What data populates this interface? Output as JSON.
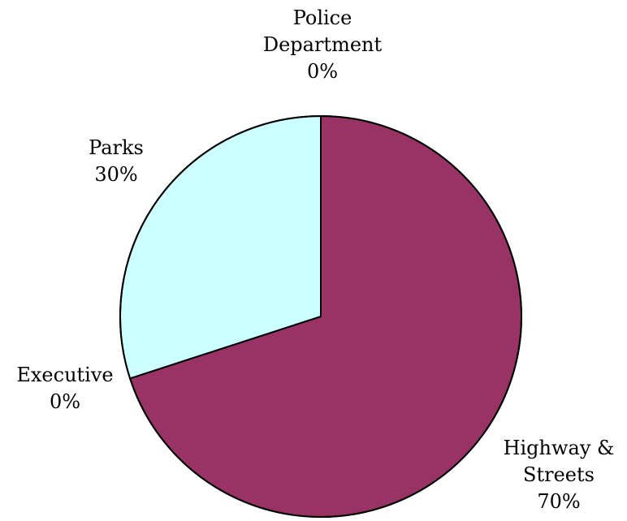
{
  "chart_data": {
    "type": "pie",
    "title": "",
    "start_angle_deg": 0,
    "direction": "clockwise",
    "slices": [
      {
        "label_lines": [
          "Highway &",
          "Streets"
        ],
        "pct_label": "70%",
        "value": 70,
        "color": "#993366"
      },
      {
        "label_lines": [
          "Executive"
        ],
        "pct_label": "0%",
        "value": 0,
        "color": "#ffffff"
      },
      {
        "label_lines": [
          "Parks"
        ],
        "pct_label": "30%",
        "value": 30,
        "color": "#ccffff"
      },
      {
        "label_lines": [
          "Police",
          "Department"
        ],
        "pct_label": "0%",
        "value": 0,
        "color": "#ffffff"
      }
    ],
    "border_color": "#000000",
    "legend": "none"
  }
}
